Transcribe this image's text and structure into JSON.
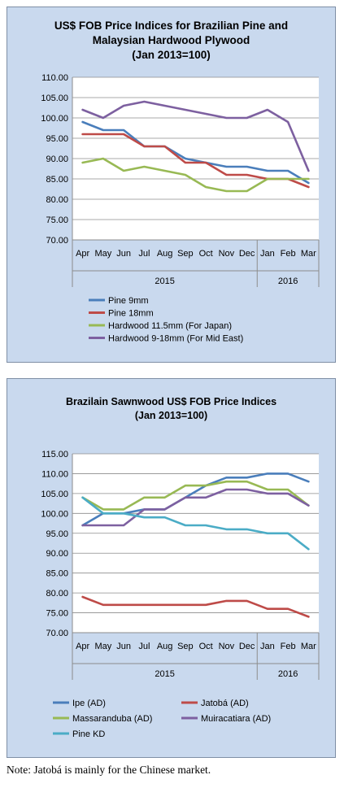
{
  "chart_data": [
    {
      "type": "line",
      "title_lines": [
        "US$ FOB Price Indices for Brazilian Pine and",
        "Malaysian Hardwood Plywood",
        "(Jan 2013=100)"
      ],
      "categories": [
        "Apr",
        "May",
        "Jun",
        "Jul",
        "Aug",
        "Sep",
        "Oct",
        "Nov",
        "Dec",
        "Jan",
        "Feb",
        "Mar"
      ],
      "year_groups": [
        {
          "label": "2015",
          "from": 0,
          "to": 8
        },
        {
          "label": "2016",
          "from": 9,
          "to": 11
        }
      ],
      "ylim": [
        70,
        110
      ],
      "ytick_step": 5,
      "ytick_decimals": 2,
      "grid": "horizontal",
      "legend_position": "bottom",
      "series": [
        {
          "name": "Pine 9mm",
          "color": "#4a7ebb",
          "values": [
            99,
            97,
            97,
            93,
            93,
            90,
            89,
            88,
            88,
            87,
            87,
            84
          ]
        },
        {
          "name": "Pine 18mm",
          "color": "#be4b48",
          "values": [
            96,
            96,
            96,
            93,
            93,
            89,
            89,
            86,
            86,
            85,
            85,
            83
          ]
        },
        {
          "name": "Hardwood 11.5mm (For Japan)",
          "color": "#98b954",
          "values": [
            89,
            90,
            87,
            88,
            87,
            86,
            83,
            82,
            82,
            85,
            85,
            85
          ]
        },
        {
          "name": "Hardwood 9-18mm (For Mid East)",
          "color": "#7d60a0",
          "values": [
            102,
            100,
            103,
            104,
            103,
            102,
            101,
            100,
            100,
            102,
            99,
            87
          ]
        }
      ]
    },
    {
      "type": "line",
      "title_lines": [
        "Brazilain Sawnwood US$ FOB Price Indices",
        "(Jan 2013=100)"
      ],
      "categories": [
        "Apr",
        "May",
        "Jun",
        "Jul",
        "Aug",
        "Sep",
        "Oct",
        "Nov",
        "Dec",
        "Jan",
        "Feb",
        "Mar"
      ],
      "year_groups": [
        {
          "label": "2015",
          "from": 0,
          "to": 8
        },
        {
          "label": "2016",
          "from": 9,
          "to": 11
        }
      ],
      "ylim": [
        70,
        115
      ],
      "ytick_step": 5,
      "ytick_decimals": 2,
      "grid": "horizontal",
      "legend_position": "bottom",
      "series": [
        {
          "name": "Ipe (AD)",
          "color": "#4a7ebb",
          "values": [
            97,
            100,
            100,
            101,
            101,
            104,
            107,
            109,
            109,
            110,
            110,
            108
          ]
        },
        {
          "name": "Jatobá (AD)",
          "color": "#be4b48",
          "values": [
            79,
            77,
            77,
            77,
            77,
            77,
            77,
            78,
            78,
            76,
            76,
            74
          ]
        },
        {
          "name": "Massaranduba (AD)",
          "color": "#98b954",
          "values": [
            104,
            101,
            101,
            104,
            104,
            107,
            107,
            108,
            108,
            106,
            106,
            102
          ]
        },
        {
          "name": "Muiracatiara (AD)",
          "color": "#7d60a0",
          "values": [
            97,
            97,
            97,
            101,
            101,
            104,
            104,
            106,
            106,
            105,
            105,
            102
          ]
        },
        {
          "name": "Pine KD",
          "color": "#4bacc6",
          "values": [
            104,
            100,
            100,
            99,
            99,
            97,
            97,
            96,
            96,
            95,
            95,
            91
          ]
        }
      ]
    }
  ],
  "note": "Note: Jatobá is mainly for the Chinese market."
}
